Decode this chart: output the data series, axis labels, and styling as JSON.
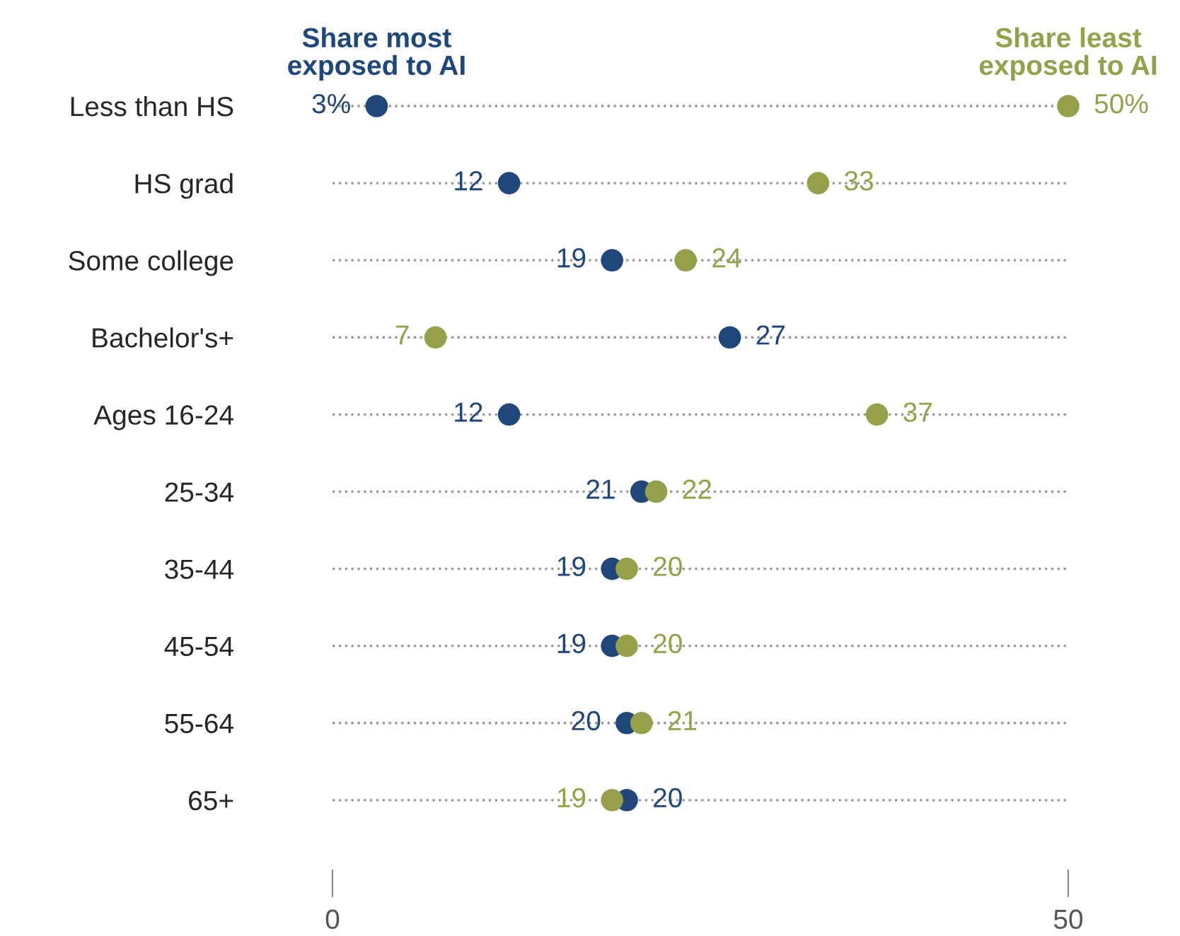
{
  "chart_data": {
    "type": "scatter",
    "categories": [
      "Less than HS",
      "HS grad",
      "Some college",
      "Bachelor's+",
      "Ages 16-24",
      "25-34",
      "35-44",
      "45-54",
      "55-64",
      "65+"
    ],
    "series": [
      {
        "name": "Share most exposed to AI",
        "color": "#1f477a",
        "values": [
          3,
          12,
          19,
          27,
          12,
          21,
          19,
          19,
          20,
          20
        ],
        "value_labels": [
          "3%",
          "12",
          "19",
          "27",
          "12",
          "21",
          "19",
          "19",
          "20",
          "20"
        ]
      },
      {
        "name": "Share least exposed to AI",
        "color": "#96a04a",
        "values": [
          50,
          33,
          24,
          7,
          37,
          22,
          20,
          20,
          21,
          19
        ],
        "value_labels": [
          "50%",
          "33",
          "24",
          "7",
          "37",
          "22",
          "20",
          "20",
          "21",
          "19"
        ]
      }
    ],
    "orientation": "horizontal",
    "xlim": [
      0,
      50
    ],
    "xticks": [
      0,
      50
    ],
    "grid": "y",
    "line_style": "dotted",
    "marker": "circle"
  }
}
